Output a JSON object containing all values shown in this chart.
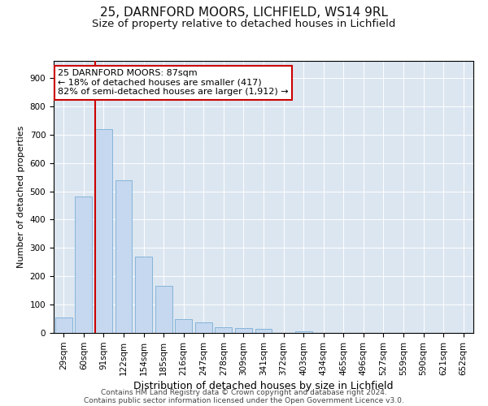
{
  "title1": "25, DARNFORD MOORS, LICHFIELD, WS14 9RL",
  "title2": "Size of property relative to detached houses in Lichfield",
  "xlabel": "Distribution of detached houses by size in Lichfield",
  "ylabel": "Number of detached properties",
  "bar_labels": [
    "29sqm",
    "60sqm",
    "91sqm",
    "122sqm",
    "154sqm",
    "185sqm",
    "216sqm",
    "247sqm",
    "278sqm",
    "309sqm",
    "341sqm",
    "372sqm",
    "403sqm",
    "434sqm",
    "465sqm",
    "496sqm",
    "527sqm",
    "559sqm",
    "590sqm",
    "621sqm",
    "652sqm"
  ],
  "bar_values": [
    55,
    480,
    720,
    540,
    270,
    165,
    48,
    38,
    20,
    18,
    15,
    0,
    5,
    0,
    0,
    0,
    0,
    0,
    0,
    0,
    0
  ],
  "bar_color": "#c5d8ef",
  "bar_edge_color": "#7aadd4",
  "annotation_line1": "25 DARNFORD MOORS: 87sqm",
  "annotation_line2": "← 18% of detached houses are smaller (417)",
  "annotation_line3": "82% of semi-detached houses are larger (1,912) →",
  "annotation_box_color": "#ffffff",
  "annotation_box_edge_color": "#cc0000",
  "line_color": "#cc0000",
  "ylim": [
    0,
    960
  ],
  "yticks": [
    0,
    100,
    200,
    300,
    400,
    500,
    600,
    700,
    800,
    900
  ],
  "background_color": "#dce6f1",
  "footer_line1": "Contains HM Land Registry data © Crown copyright and database right 2024.",
  "footer_line2": "Contains public sector information licensed under the Open Government Licence v3.0.",
  "title1_fontsize": 11,
  "title2_fontsize": 9.5,
  "xlabel_fontsize": 9,
  "ylabel_fontsize": 8,
  "tick_fontsize": 7.5,
  "footer_fontsize": 6.5,
  "annotation_fontsize": 8
}
